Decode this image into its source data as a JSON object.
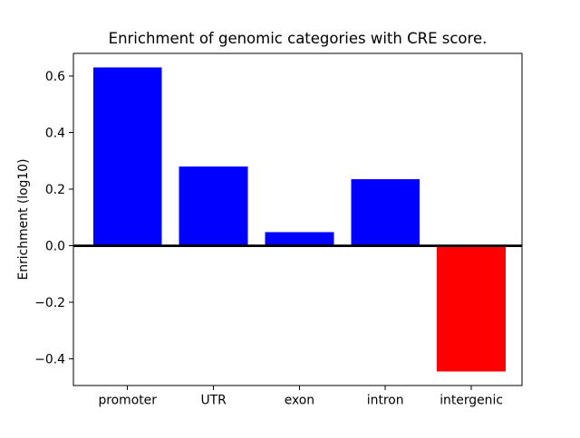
{
  "figure": {
    "title": "Enrichment of genomic categories with CRE score.",
    "ylabel": "Enrichment (log10)"
  },
  "chart_data": {
    "type": "bar",
    "title": "Enrichment of genomic categories with CRE score.",
    "xlabel": "",
    "ylabel": "Enrichment (log10)",
    "categories": [
      "promoter",
      "UTR",
      "exon",
      "intron",
      "intergenic"
    ],
    "values": [
      0.63,
      0.28,
      0.048,
      0.235,
      -0.445
    ],
    "bar_colors": [
      "#0000ff",
      "#0000ff",
      "#0000ff",
      "#0000ff",
      "#ff0000"
    ],
    "positive_color": "#0000ff",
    "negative_color": "#ff0000",
    "yticks": [
      0.6,
      0.4,
      0.2,
      0.0,
      -0.2,
      -0.4
    ],
    "ylim": [
      -0.494,
      0.68
    ],
    "xlim": [
      -0.63,
      4.59
    ],
    "bar_rel_width": 0.8,
    "zero_line": true,
    "grid": false,
    "legend": null,
    "background": "#ffffff",
    "axis_color": "#000000"
  }
}
